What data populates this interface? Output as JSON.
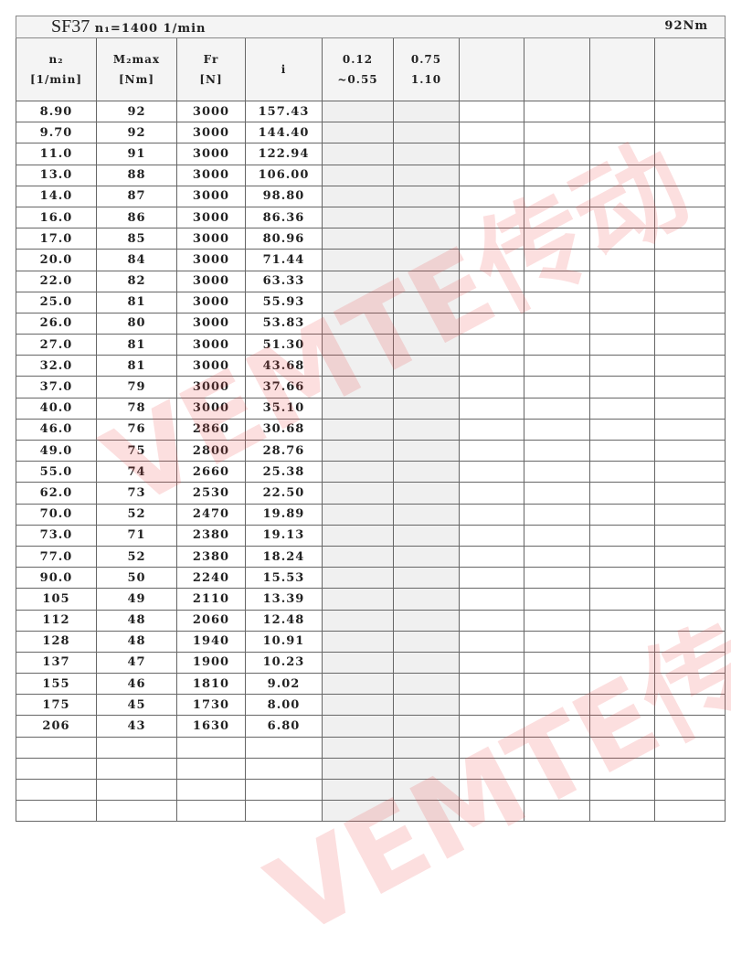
{
  "title": {
    "model": "SF37",
    "input_speed": "n₁=1400 1/min",
    "torque": "92Nm"
  },
  "headers": [
    [
      "n₂",
      "[1/min]"
    ],
    [
      "M₂max",
      "[Nm]"
    ],
    [
      "Fr",
      "[N]"
    ],
    [
      "i",
      ""
    ],
    [
      "0.12",
      "~0.55"
    ],
    [
      "0.75",
      "1.10"
    ],
    [
      "",
      ""
    ],
    [
      "",
      ""
    ],
    [
      "",
      ""
    ],
    [
      "",
      ""
    ]
  ],
  "rows": [
    [
      "8.90",
      "92",
      "3000",
      "157.43"
    ],
    [
      "9.70",
      "92",
      "3000",
      "144.40"
    ],
    [
      "11.0",
      "91",
      "3000",
      "122.94"
    ],
    [
      "13.0",
      "88",
      "3000",
      "106.00"
    ],
    [
      "14.0",
      "87",
      "3000",
      "98.80"
    ],
    [
      "16.0",
      "86",
      "3000",
      "86.36"
    ],
    [
      "17.0",
      "85",
      "3000",
      "80.96"
    ],
    [
      "20.0",
      "84",
      "3000",
      "71.44"
    ],
    [
      "22.0",
      "82",
      "3000",
      "63.33"
    ],
    [
      "25.0",
      "81",
      "3000",
      "55.93"
    ],
    [
      "26.0",
      "80",
      "3000",
      "53.83"
    ],
    [
      "27.0",
      "81",
      "3000",
      "51.30"
    ],
    [
      "32.0",
      "81",
      "3000",
      "43.68"
    ],
    [
      "37.0",
      "79",
      "3000",
      "37.66"
    ],
    [
      "40.0",
      "78",
      "3000",
      "35.10"
    ],
    [
      "46.0",
      "76",
      "2860",
      "30.68"
    ],
    [
      "49.0",
      "75",
      "2800",
      "28.76"
    ],
    [
      "55.0",
      "74",
      "2660",
      "25.38"
    ],
    [
      "62.0",
      "73",
      "2530",
      "22.50"
    ],
    [
      "70.0",
      "52",
      "2470",
      "19.89"
    ],
    [
      "73.0",
      "71",
      "2380",
      "19.13"
    ],
    [
      "77.0",
      "52",
      "2380",
      "18.24"
    ],
    [
      "90.0",
      "50",
      "2240",
      "15.53"
    ],
    [
      "105",
      "49",
      "2110",
      "13.39"
    ],
    [
      "112",
      "48",
      "2060",
      "12.48"
    ],
    [
      "128",
      "48",
      "1940",
      "10.91"
    ],
    [
      "137",
      "47",
      "1900",
      "10.23"
    ],
    [
      "155",
      "46",
      "1810",
      "9.02"
    ],
    [
      "175",
      "45",
      "1730",
      "8.00"
    ],
    [
      "206",
      "43",
      "1630",
      "6.80"
    ],
    [
      "",
      "",
      "",
      ""
    ],
    [
      "",
      "",
      "",
      ""
    ],
    [
      "",
      "",
      "",
      ""
    ],
    [
      "",
      "",
      "",
      ""
    ]
  ],
  "watermark": "VEMTE传动"
}
